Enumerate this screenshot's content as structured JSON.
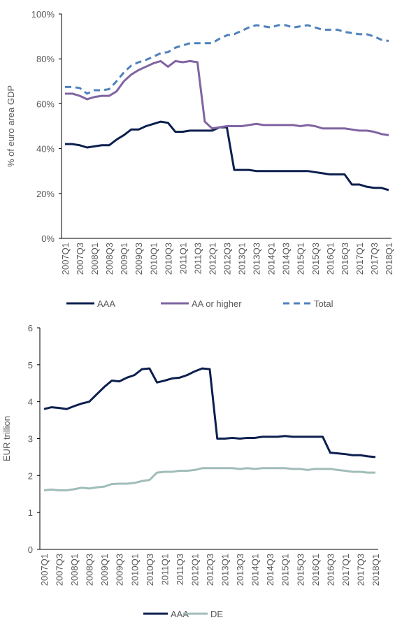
{
  "chart_data": [
    {
      "type": "line",
      "ylabel": "% of euro area GDP",
      "categories": [
        "2007Q1",
        null,
        "2007Q3",
        null,
        "2008Q1",
        null,
        "2008Q3",
        null,
        "2009Q1",
        null,
        "2009Q3",
        null,
        "2010Q1",
        null,
        "2010Q3",
        null,
        "2011Q1",
        null,
        "2011Q3",
        null,
        "2012Q1",
        null,
        "2012Q3",
        null,
        "2013Q1",
        null,
        "2013Q3",
        null,
        "2014Q1",
        null,
        "2014Q3",
        null,
        "2015Q1",
        null,
        "2015Q3",
        null,
        "2016Q1",
        null,
        "2016Q3",
        null,
        "2017Q1",
        null,
        "2017Q3",
        null,
        "2018Q1"
      ],
      "ylim": [
        0,
        100
      ],
      "yticks": [
        {
          "value": 0,
          "label": "0%"
        },
        {
          "value": 20,
          "label": "20%"
        },
        {
          "value": 40,
          "label": "40%"
        },
        {
          "value": 60,
          "label": "60%"
        },
        {
          "value": 80,
          "label": "80%"
        },
        {
          "value": 100,
          "label": "100%"
        }
      ],
      "legend": "bottom",
      "series": [
        {
          "name": "AAA",
          "color": "#0c1f4e",
          "dashed": false,
          "values": [
            42,
            42,
            41.5,
            40.5,
            41,
            41.5,
            41.5,
            44,
            46,
            48.5,
            48.5,
            50,
            51,
            52,
            51.5,
            47.5,
            47.5,
            48,
            48,
            48,
            48,
            49.5,
            49.5,
            30.5,
            30.5,
            30.5,
            30,
            30,
            30,
            30,
            30,
            30,
            30,
            30,
            29.5,
            29,
            28.5,
            28.5,
            28.5,
            24,
            24,
            23,
            22.5,
            22.5,
            21.5
          ]
        },
        {
          "name": "AA or higher",
          "color": "#8064a2",
          "dashed": false,
          "values": [
            64.5,
            64.5,
            63.5,
            62,
            63,
            63.5,
            63.5,
            65.5,
            70,
            73,
            75,
            76.5,
            78,
            79,
            76.5,
            79,
            78.5,
            79,
            78.5,
            52,
            49,
            49.5,
            50,
            50,
            50,
            50.5,
            51,
            50.5,
            50.5,
            50.5,
            50.5,
            50.5,
            50,
            50.5,
            50,
            49,
            49,
            49,
            49,
            48.5,
            48,
            48,
            47.5,
            46.5,
            46
          ]
        },
        {
          "name": "Total",
          "color": "#4f81bd",
          "dashed": true,
          "values": [
            67.5,
            67.5,
            67,
            64.5,
            66,
            66,
            66.5,
            70,
            74,
            77,
            78.5,
            79.5,
            81,
            82.5,
            83,
            85,
            86,
            87,
            87,
            87,
            87,
            89,
            90.5,
            91,
            92.5,
            94,
            95,
            94.5,
            94,
            95,
            95,
            94,
            94.5,
            95,
            94,
            93,
            93,
            93,
            92,
            91.5,
            91,
            91,
            90,
            88.5,
            88
          ]
        }
      ]
    },
    {
      "type": "line",
      "ylabel": "EUR trillion",
      "categories": [
        "2007Q1",
        null,
        "2007Q3",
        null,
        "2008Q1",
        null,
        "2008Q3",
        null,
        "2009Q1",
        null,
        "2009Q3",
        null,
        "2010Q1",
        null,
        "2010Q3",
        null,
        "2011Q1",
        null,
        "2011Q3",
        null,
        "2012Q1",
        null,
        "2012Q3",
        null,
        "2013Q1",
        null,
        "2013Q3",
        null,
        "2014Q1",
        null,
        "2014Q3",
        null,
        "2015Q1",
        null,
        "2015Q3",
        null,
        "2016Q1",
        null,
        "2016Q3",
        null,
        "2017Q1",
        null,
        "2017Q3",
        null,
        "2018Q1"
      ],
      "ylim": [
        0,
        6
      ],
      "yticks": [
        0,
        1,
        2,
        3,
        4,
        5,
        6
      ],
      "legend": "bottom",
      "series": [
        {
          "name": "AAA",
          "color": "#0c1f4e",
          "dashed": false,
          "values": [
            3.8,
            3.85,
            3.83,
            3.8,
            3.88,
            3.95,
            4.0,
            4.2,
            4.4,
            4.57,
            4.55,
            4.65,
            4.72,
            4.88,
            4.9,
            4.52,
            4.57,
            4.63,
            4.65,
            4.72,
            4.82,
            4.9,
            4.88,
            3.0,
            3.0,
            3.02,
            3.0,
            3.02,
            3.02,
            3.05,
            3.05,
            3.05,
            3.07,
            3.05,
            3.05,
            3.05,
            3.05,
            3.05,
            2.62,
            2.6,
            2.58,
            2.55,
            2.55,
            2.52,
            2.5
          ]
        },
        {
          "name": "DE",
          "color": "#a0bdb9",
          "dashed": false,
          "values": [
            1.6,
            1.62,
            1.6,
            1.6,
            1.63,
            1.67,
            1.65,
            1.68,
            1.7,
            1.77,
            1.78,
            1.78,
            1.8,
            1.85,
            1.88,
            2.08,
            2.1,
            2.1,
            2.13,
            2.13,
            2.15,
            2.2,
            2.2,
            2.2,
            2.2,
            2.2,
            2.18,
            2.2,
            2.18,
            2.2,
            2.2,
            2.2,
            2.2,
            2.18,
            2.18,
            2.15,
            2.18,
            2.18,
            2.18,
            2.15,
            2.13,
            2.1,
            2.1,
            2.08,
            2.08
          ]
        }
      ]
    }
  ]
}
